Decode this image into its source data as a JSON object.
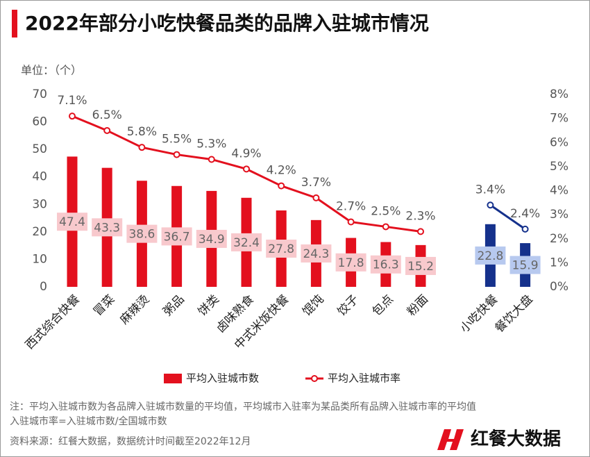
{
  "chart_data": {
    "type": "bar-line",
    "title": "2022年部分小吃快餐品类的品牌入驻城市情况",
    "unit_label": "单位：（个）",
    "categories": [
      "西式综合快餐",
      "冒菜",
      "麻辣烫",
      "粥品",
      "饼类",
      "卤味熟食",
      "中式米饭快餐",
      "馄饨",
      "饺子",
      "包点",
      "粉面",
      null,
      "小吃快餐",
      "餐饮大盘"
    ],
    "series": [
      {
        "name": "平均入驻城市数",
        "type": "bar",
        "color": "#e3101e",
        "colors": [
          "#e3101e",
          "#e3101e",
          "#e3101e",
          "#e3101e",
          "#e3101e",
          "#e3101e",
          "#e3101e",
          "#e3101e",
          "#e3101e",
          "#e3101e",
          "#e3101e",
          null,
          "#15318c",
          "#15318c"
        ],
        "label_colors": [
          "#f8c9cd",
          "#f8c9cd",
          "#f8c9cd",
          "#f8c9cd",
          "#f8c9cd",
          "#f8c9cd",
          "#f8c9cd",
          "#f8c9cd",
          "#f8c9cd",
          "#f8c9cd",
          "#f8c9cd",
          null,
          "#b7c9ef",
          "#b7c9ef"
        ],
        "values": [
          47.4,
          43.3,
          38.6,
          36.7,
          34.9,
          32.4,
          27.8,
          24.3,
          17.8,
          16.3,
          15.2,
          null,
          22.8,
          15.9
        ]
      },
      {
        "name": "平均入驻城市率",
        "type": "line",
        "axis": "y2",
        "color": "#e3101e",
        "colors": [
          "#e3101e",
          "#e3101e",
          "#e3101e",
          "#e3101e",
          "#e3101e",
          "#e3101e",
          "#e3101e",
          "#e3101e",
          "#e3101e",
          "#e3101e",
          "#e3101e",
          null,
          "#15318c",
          "#15318c"
        ],
        "values": [
          7.1,
          6.5,
          5.8,
          5.5,
          5.3,
          4.9,
          4.2,
          3.7,
          2.7,
          2.5,
          2.3,
          null,
          3.4,
          2.4
        ],
        "value_labels": [
          "7.1%",
          "6.5%",
          "5.8%",
          "5.5%",
          "5.3%",
          "4.9%",
          "4.2%",
          "3.7%",
          "2.7%",
          "2.5%",
          "2.3%",
          null,
          "3.4%",
          "2.4%"
        ]
      }
    ],
    "ylim": [
      0,
      70
    ],
    "yticks": [
      0,
      10,
      20,
      30,
      40,
      50,
      60,
      70
    ],
    "y2lim": [
      0,
      8
    ],
    "y2ticks": [
      {
        "value": 0,
        "label": "0%"
      },
      {
        "value": 1,
        "label": "1%"
      },
      {
        "value": 2,
        "label": "2%"
      },
      {
        "value": 3,
        "label": "3%"
      },
      {
        "value": 4,
        "label": "4%"
      },
      {
        "value": 5,
        "label": "5%"
      },
      {
        "value": 6,
        "label": "6%"
      },
      {
        "value": 7,
        "label": "7%"
      },
      {
        "value": 8,
        "label": "8%"
      }
    ],
    "notes": [
      "注：平均入驻城市数为各品牌入驻城市数量的平均值，平均城市入驻率为某品类所有品牌入驻城市率的平均值",
      "入驻城市率=入驻城市数/全国城市数"
    ],
    "source": "资料来源：红餐大数据，数据统计时间截至2022年12月",
    "logo": "红餐大数据"
  }
}
